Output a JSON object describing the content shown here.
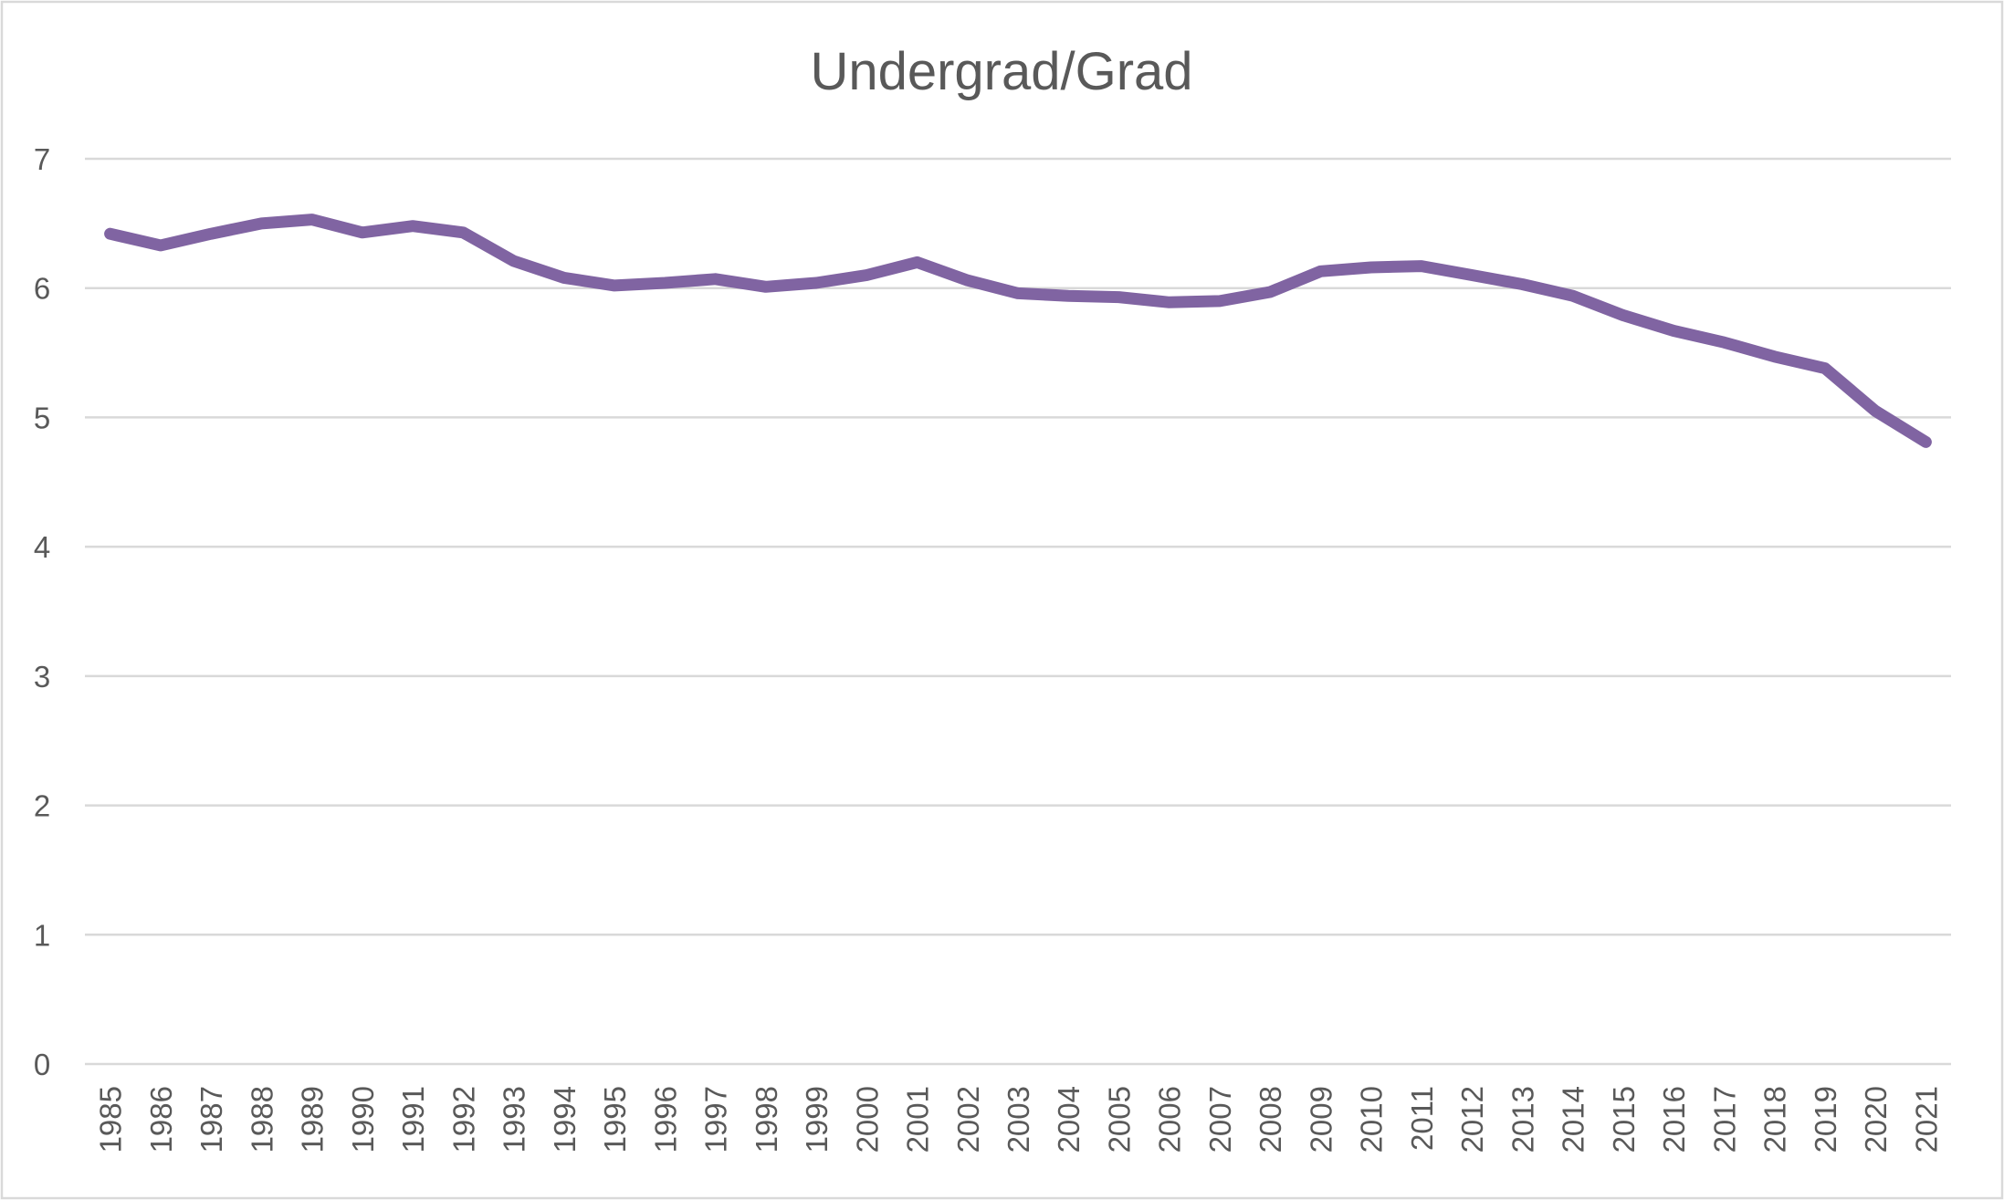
{
  "chart_data": {
    "type": "line",
    "title": "Undergrad/Grad",
    "xlabel": "",
    "ylabel": "",
    "ylim": [
      0,
      7
    ],
    "yticks": [
      0,
      1,
      2,
      3,
      4,
      5,
      6,
      7
    ],
    "grid": true,
    "legend": "none",
    "x": [
      "1985",
      "1986",
      "1987",
      "1988",
      "1989",
      "1990",
      "1991",
      "1992",
      "1993",
      "1994",
      "1995",
      "1996",
      "1997",
      "1998",
      "1999",
      "2000",
      "2001",
      "2002",
      "2003",
      "2004",
      "2005",
      "2006",
      "2007",
      "2008",
      "2009",
      "2010",
      "2011",
      "2012",
      "2013",
      "2014",
      "2015",
      "2016",
      "2017",
      "2018",
      "2019",
      "2020",
      "2021"
    ],
    "series": [
      {
        "color": "#8064a2",
        "values": [
          6.42,
          6.33,
          6.42,
          6.5,
          6.53,
          6.43,
          6.48,
          6.43,
          6.21,
          6.08,
          6.02,
          6.04,
          6.07,
          6.01,
          6.04,
          6.1,
          6.2,
          6.06,
          5.96,
          5.94,
          5.93,
          5.89,
          5.9,
          5.97,
          6.13,
          6.16,
          6.17,
          6.1,
          6.03,
          5.94,
          5.79,
          5.67,
          5.58,
          5.47,
          5.38,
          5.05,
          4.81
        ]
      }
    ]
  }
}
